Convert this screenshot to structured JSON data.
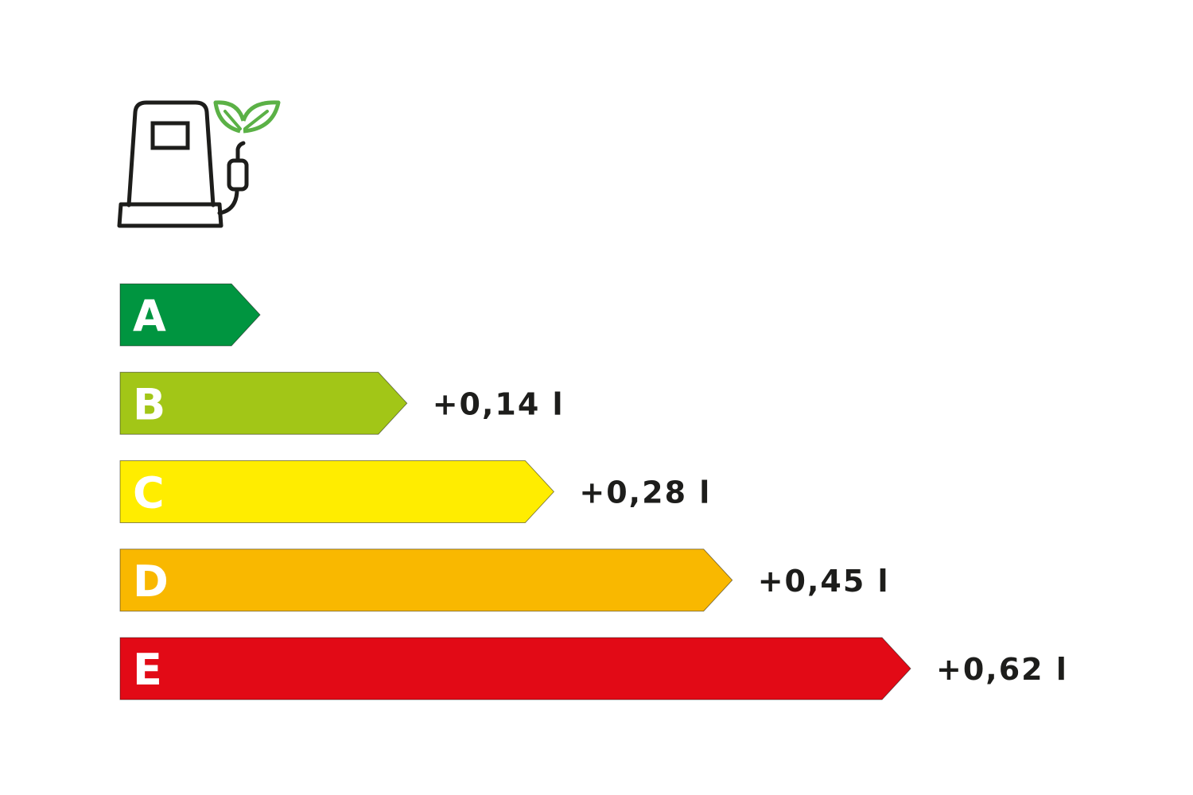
{
  "icon": {
    "name": "fuel-pump-with-leaves-icon",
    "pump_color": "#1d1d1b",
    "leaf_color": "#5bb146"
  },
  "chart_data": {
    "type": "bar",
    "orientation": "horizontal",
    "style": "energy-label-arrows",
    "categories": [
      "A",
      "B",
      "C",
      "D",
      "E"
    ],
    "values": [
      0,
      0.14,
      0.28,
      0.45,
      0.62
    ],
    "value_labels": [
      "",
      "+0,14 l",
      "+0,28 l",
      "+0,45 l",
      "+0,62 l"
    ],
    "colors": [
      "#009540",
      "#a2c617",
      "#ffed00",
      "#f9b800",
      "#e20a16"
    ],
    "label_color": "#1d1d1b",
    "letter_color": "#ffffff",
    "xlim": [
      0,
      0.62
    ],
    "grid": false,
    "legend": "none"
  }
}
